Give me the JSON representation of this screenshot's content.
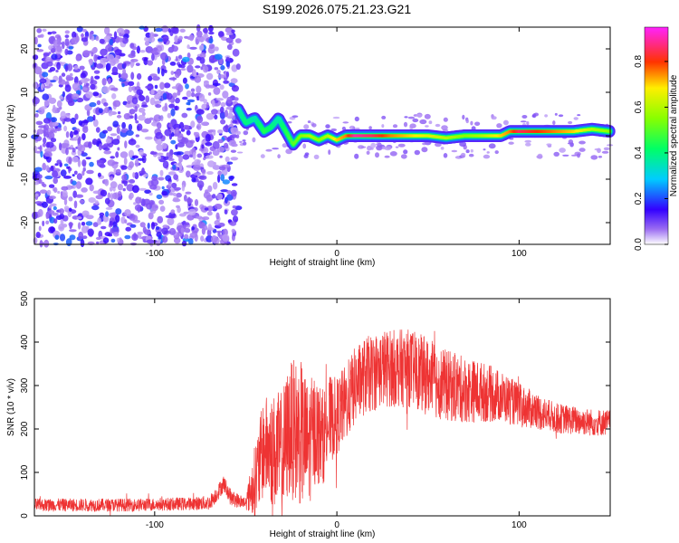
{
  "title": "S199.2026.075.21.23.G21",
  "chart_data": [
    {
      "type": "heatmap",
      "xlabel": "Height of straight line (km)",
      "ylabel": "Frequency (Hz)",
      "xlim": [
        -166,
        150
      ],
      "ylim": [
        -25,
        25
      ],
      "xticks": [
        -100,
        0,
        100
      ],
      "yticks": [
        -20,
        -10,
        0,
        10,
        20
      ],
      "colorbar": {
        "label": "Normalized spectral amplitude",
        "range": [
          0,
          0.95
        ],
        "ticks": [
          0.0,
          0.2,
          0.4,
          0.6,
          0.8
        ]
      },
      "noise_region_x": [
        -166,
        -54
      ],
      "ridge": {
        "x": [
          -54,
          -50,
          -45,
          -40,
          -36,
          -32,
          -28,
          -24,
          -20,
          -15,
          -10,
          -5,
          0,
          5,
          10,
          20,
          30,
          40,
          50,
          60,
          70,
          80,
          90,
          95,
          100,
          110,
          120,
          130,
          140,
          150
        ],
        "y": [
          6,
          3,
          4,
          1,
          2,
          4,
          1,
          -2,
          0,
          0,
          -1,
          0,
          -1,
          0,
          0,
          0,
          0,
          0,
          0,
          -0.5,
          0,
          0,
          0,
          1,
          1,
          1,
          1,
          1,
          1.5,
          1
        ],
        "amplitude": [
          0.35,
          0.4,
          0.35,
          0.45,
          0.4,
          0.35,
          0.45,
          0.5,
          0.55,
          0.6,
          0.55,
          0.6,
          0.7,
          0.75,
          0.9,
          0.85,
          0.75,
          0.7,
          0.65,
          0.6,
          0.55,
          0.6,
          0.7,
          0.75,
          0.85,
          0.8,
          0.75,
          0.7,
          0.6,
          0.55
        ]
      }
    },
    {
      "type": "line",
      "xlabel": "Height of straight line (km)",
      "ylabel": "SNR (10 * v/v)",
      "xlim": [
        -166,
        150
      ],
      "ylim": [
        0,
        500
      ],
      "xticks": [
        -100,
        0,
        100
      ],
      "yticks": [
        0,
        100,
        200,
        300,
        400,
        500
      ],
      "color": "#ee3333",
      "envelope": {
        "x": [
          -166,
          -140,
          -110,
          -80,
          -70,
          -66,
          -62,
          -58,
          -50,
          -44,
          -40,
          -36,
          -30,
          -26,
          -20,
          -16,
          -12,
          -8,
          -4,
          0,
          5,
          10,
          15,
          20,
          25,
          30,
          40,
          50,
          60,
          70,
          80,
          90,
          100,
          110,
          120,
          130,
          140,
          150
        ],
        "y": [
          25,
          25,
          25,
          28,
          30,
          50,
          75,
          40,
          30,
          90,
          160,
          150,
          140,
          200,
          190,
          160,
          200,
          180,
          220,
          230,
          260,
          300,
          320,
          330,
          340,
          340,
          340,
          320,
          300,
          290,
          285,
          275,
          255,
          240,
          225,
          220,
          215,
          215
        ]
      },
      "spread": {
        "x": [
          -166,
          -80,
          -60,
          -50,
          -44,
          -36,
          -30,
          -20,
          -10,
          0,
          10,
          30,
          50,
          80,
          100,
          120,
          150
        ],
        "y": [
          15,
          15,
          20,
          15,
          100,
          130,
          150,
          170,
          120,
          90,
          90,
          90,
          90,
          70,
          50,
          35,
          30
        ]
      }
    }
  ]
}
